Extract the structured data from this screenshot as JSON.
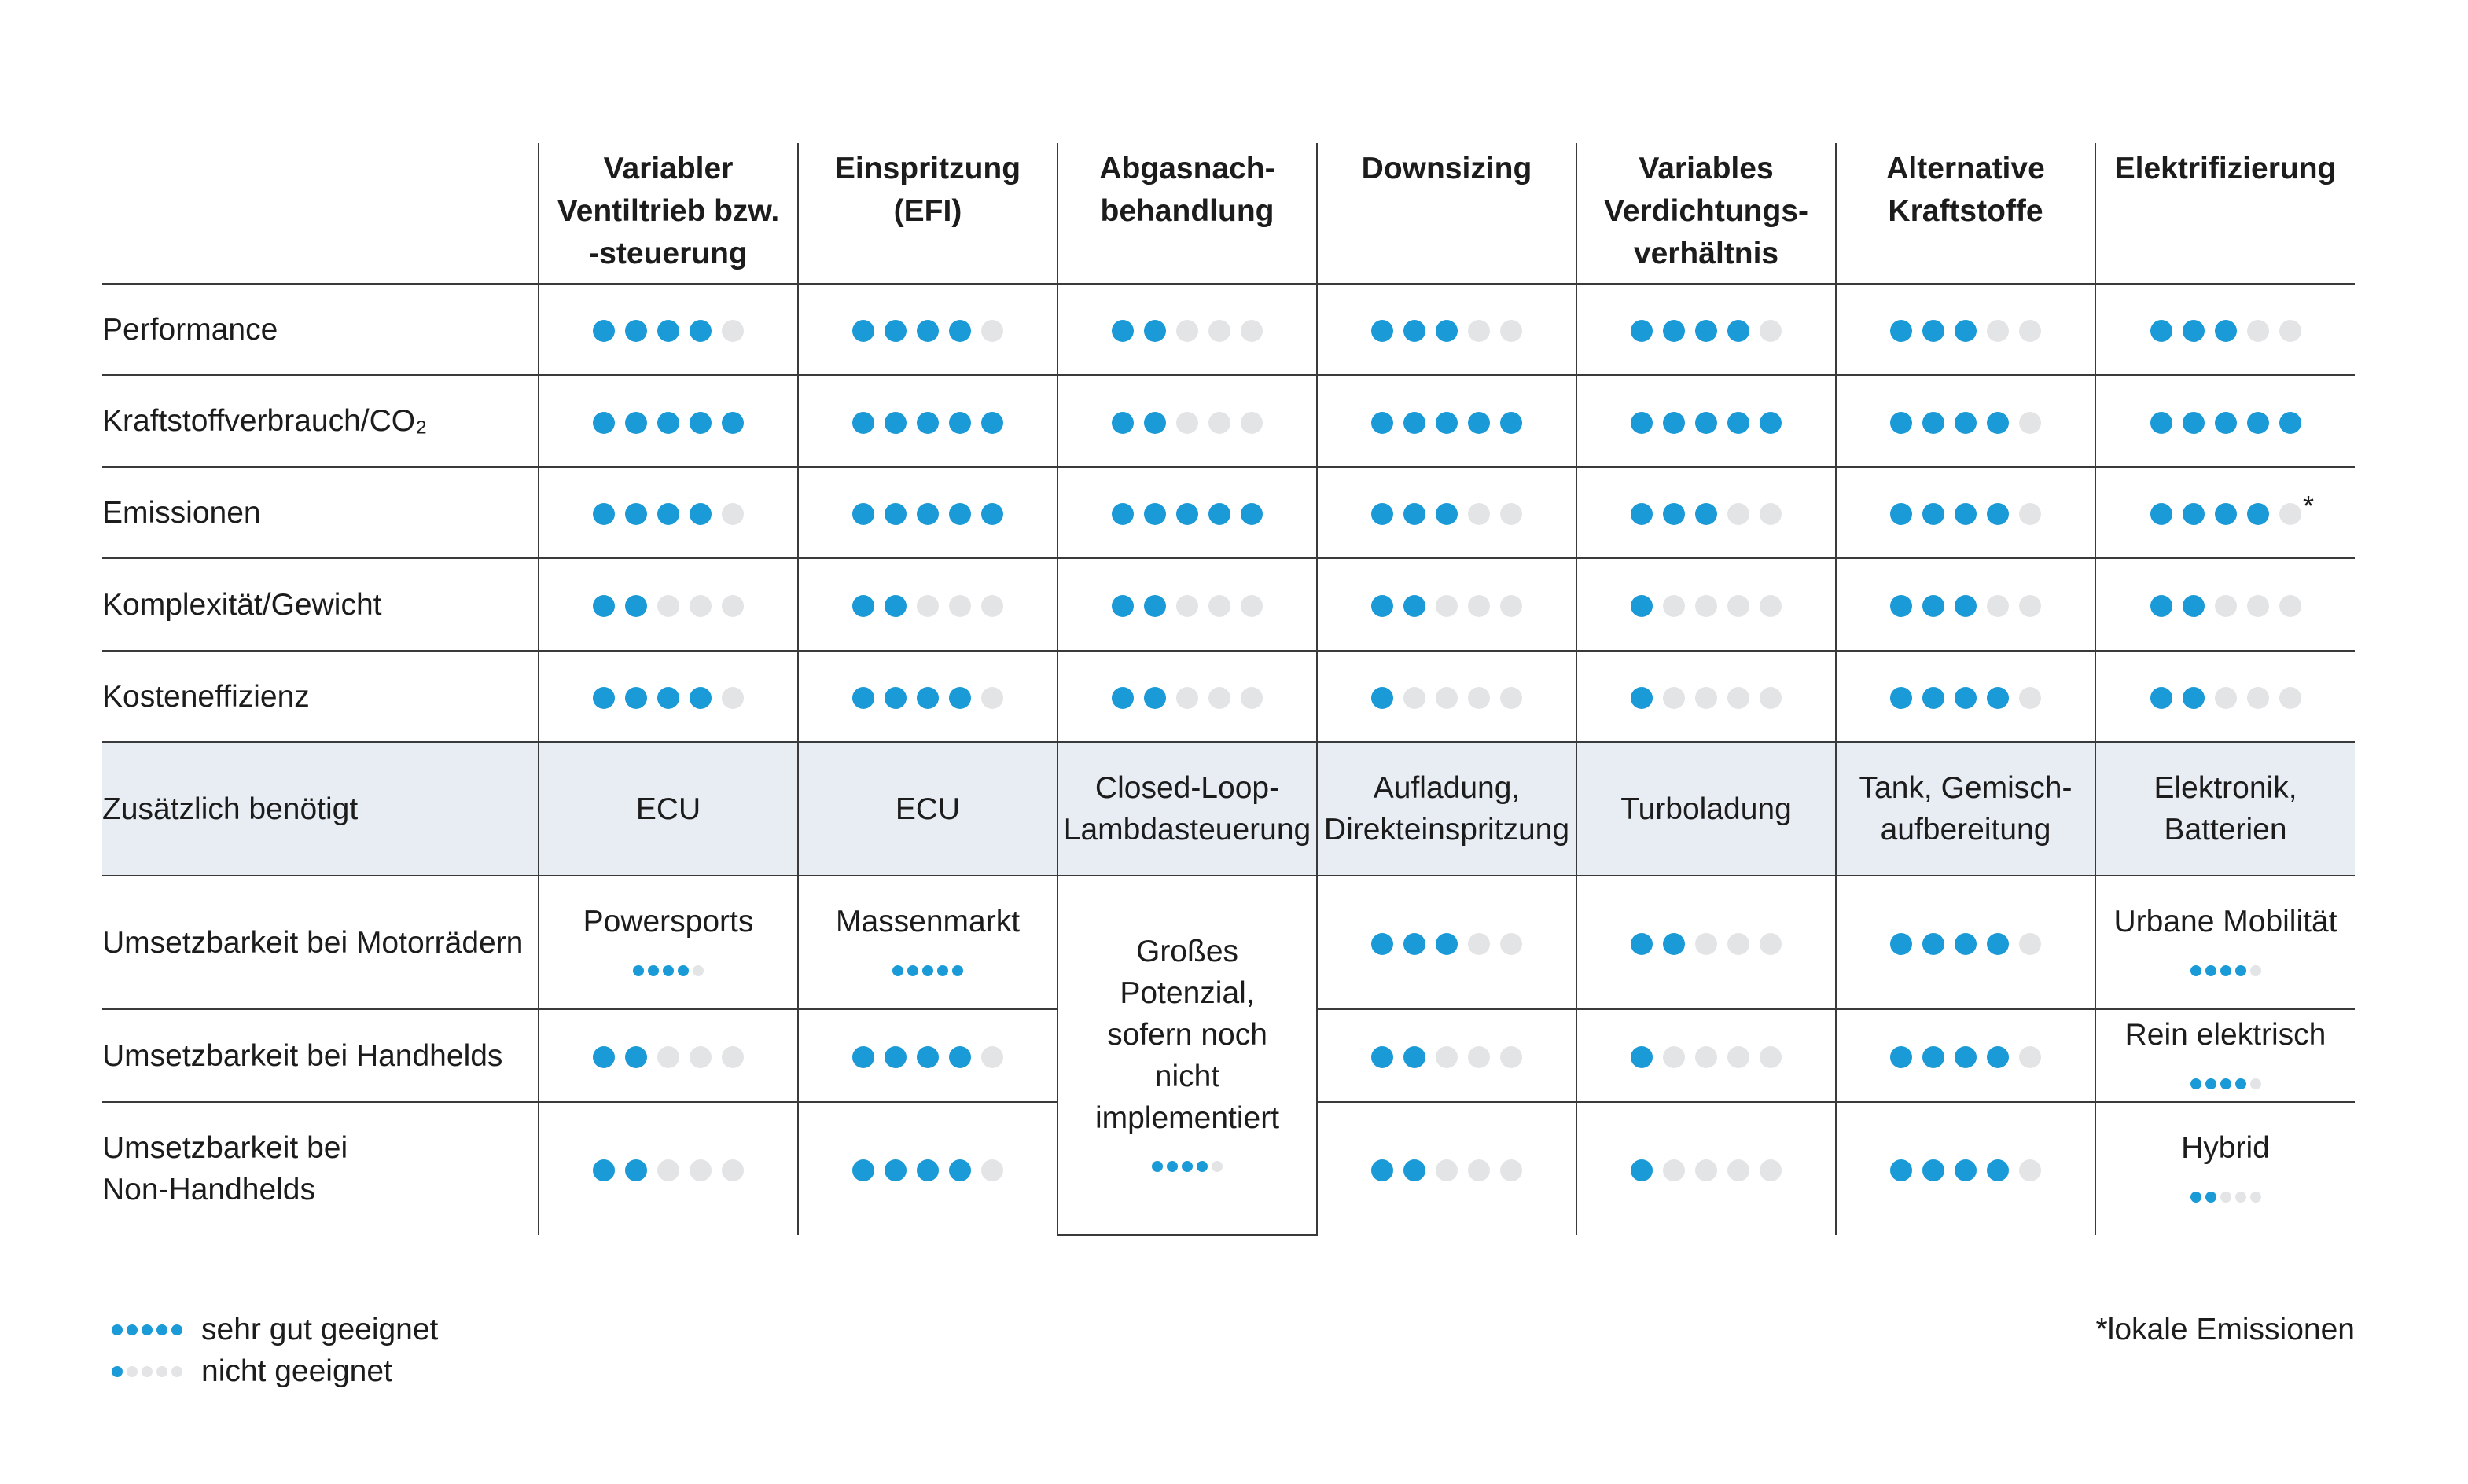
{
  "colors": {
    "filled": "#1a9ad6",
    "empty": "#e3e4e6",
    "band": "#e8edf4"
  },
  "columns": [
    "Variabler Ventiltrieb bzw. -steuerung",
    "Einspritzung (EFI)",
    "Abgasnach-behandlung",
    "Downsizing",
    "Variables Verdichtungs-verhältnis",
    "Alternative Kraftstoffe",
    "Elektrifizierung"
  ],
  "column_lines": [
    [
      "Variabler",
      "Ventiltrieb bzw.",
      "-steuerung"
    ],
    [
      "Einspritzung",
      "(EFI)"
    ],
    [
      "Abgasnach-",
      "behandlung"
    ],
    [
      "Downsizing"
    ],
    [
      "Variables",
      "Verdichtungs-",
      "verhältnis"
    ],
    [
      "Alternative",
      "Kraftstoffe"
    ],
    [
      "Elektrifizierung"
    ]
  ],
  "rows": [
    {
      "label": "Performance",
      "cells": [
        {
          "rating": 4
        },
        {
          "rating": 4
        },
        {
          "rating": 2
        },
        {
          "rating": 3
        },
        {
          "rating": 4
        },
        {
          "rating": 3
        },
        {
          "rating": 3
        }
      ]
    },
    {
      "label": "Kraftstoffverbrauch/CO₂",
      "cells": [
        {
          "rating": 5
        },
        {
          "rating": 5
        },
        {
          "rating": 2
        },
        {
          "rating": 5
        },
        {
          "rating": 5
        },
        {
          "rating": 4
        },
        {
          "rating": 5
        }
      ]
    },
    {
      "label": "Emissionen",
      "cells": [
        {
          "rating": 4
        },
        {
          "rating": 5
        },
        {
          "rating": 5
        },
        {
          "rating": 3
        },
        {
          "rating": 3
        },
        {
          "rating": 4
        },
        {
          "rating": 4,
          "note": "*"
        }
      ]
    },
    {
      "label": "Komplexität/Gewicht",
      "cells": [
        {
          "rating": 2
        },
        {
          "rating": 2
        },
        {
          "rating": 2
        },
        {
          "rating": 2
        },
        {
          "rating": 1
        },
        {
          "rating": 3
        },
        {
          "rating": 2
        }
      ]
    },
    {
      "label": "Kosteneffizienz",
      "cells": [
        {
          "rating": 4
        },
        {
          "rating": 4
        },
        {
          "rating": 2
        },
        {
          "rating": 1
        },
        {
          "rating": 1
        },
        {
          "rating": 4
        },
        {
          "rating": 2
        }
      ]
    },
    {
      "label": "Zusätzlich benötigt",
      "band": true,
      "cells": [
        {
          "text": "ECU"
        },
        {
          "text": "ECU"
        },
        {
          "text": "Closed-Loop-Lambdasteuerung"
        },
        {
          "text": "Aufladung, Direkteinspritzung"
        },
        {
          "text": "Turboladung"
        },
        {
          "text": "Tank, Gemisch-aufbereitung"
        },
        {
          "text": "Elektronik, Batterien"
        }
      ]
    },
    {
      "label": "Umsetzbarkeit bei Motorrädern",
      "cells": [
        {
          "text": "Powersports",
          "rating": 4,
          "small": true
        },
        {
          "text": "Massenmarkt",
          "rating": 5,
          "small": true
        },
        {
          "text": "Großes Potenzial, sofern noch nicht implementiert",
          "rating": 4,
          "small": true,
          "rowspan": 3
        },
        {
          "rating": 3
        },
        {
          "rating": 2
        },
        {
          "rating": 4
        },
        {
          "text": "Urbane Mobilität",
          "rating": 4,
          "small": true
        }
      ]
    },
    {
      "label": "Umsetzbarkeit bei Handhelds",
      "cells": [
        {
          "rating": 2
        },
        {
          "rating": 4
        },
        null,
        {
          "rating": 2
        },
        {
          "rating": 1
        },
        {
          "rating": 4
        },
        {
          "text": "Rein elektrisch",
          "rating": 4,
          "small": true
        }
      ]
    },
    {
      "label": "Umsetzbarkeit bei Non-Handhelds",
      "cells": [
        {
          "rating": 2
        },
        {
          "rating": 4
        },
        null,
        {
          "rating": 2
        },
        {
          "rating": 1
        },
        {
          "rating": 4
        },
        {
          "text": "Hybrid",
          "rating": 2,
          "small": true
        }
      ]
    }
  ],
  "legend": [
    {
      "rating": 5,
      "label": "sehr gut geeignet"
    },
    {
      "rating": 1,
      "label": "nicht geeignet"
    }
  ],
  "footnote": "*lokale Emissionen"
}
